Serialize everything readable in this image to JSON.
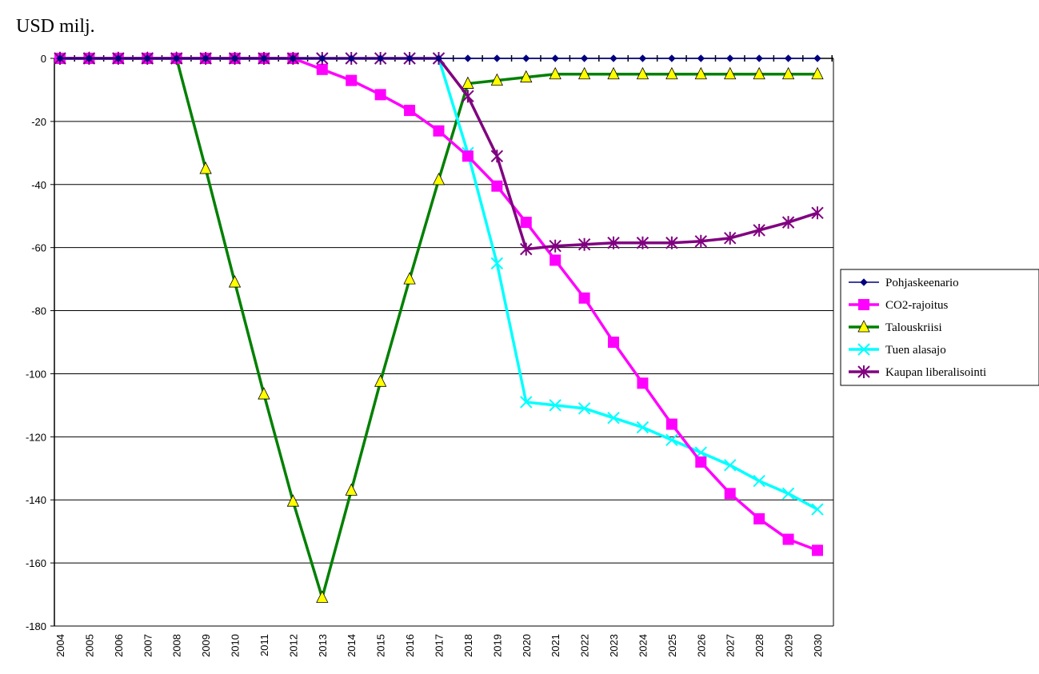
{
  "chart_data": {
    "type": "line",
    "title": "",
    "xlabel": "",
    "ylabel": "USD milj.",
    "ylim": [
      -180,
      0
    ],
    "ytick_step": 20,
    "grid": true,
    "legend_position": "right",
    "x": [
      "2004",
      "2005",
      "2006",
      "2007",
      "2008",
      "2009",
      "2010",
      "2011",
      "2012",
      "2013",
      "2014",
      "2015",
      "2016",
      "2017",
      "2018",
      "2019",
      "2020",
      "2021",
      "2022",
      "2023",
      "2024",
      "2025",
      "2026",
      "2027",
      "2028",
      "2029",
      "2030"
    ],
    "series": [
      {
        "name": "Pohjaskeenario",
        "color": "#000080",
        "marker": "diamond",
        "values": [
          0,
          0,
          0,
          0,
          0,
          0,
          0,
          0,
          0,
          0,
          0,
          0,
          0,
          0,
          0,
          0,
          0,
          0,
          0,
          0,
          0,
          0,
          0,
          0,
          0,
          0,
          0
        ]
      },
      {
        "name": "CO2-rajoitus",
        "color": "#ff00ff",
        "marker": "square",
        "values": [
          0,
          0,
          0,
          0,
          0,
          0,
          0,
          0,
          0,
          -3.5,
          -7,
          -11.5,
          -16.5,
          -23,
          -31,
          -40.5,
          -52,
          -64,
          -76,
          -90,
          -103,
          -116,
          -128,
          -138,
          -146,
          -152.5,
          -156
        ]
      },
      {
        "name": "Talouskriisi",
        "color": "#008000",
        "marker_fill": "#ffff00",
        "marker": "triangle",
        "values": [
          0,
          0,
          0,
          0,
          0,
          -35,
          -71,
          -106.5,
          -140.5,
          -171,
          -137,
          -102.5,
          -70,
          -38.5,
          -8,
          -7,
          -6,
          -5,
          -5,
          -5,
          -5,
          -5,
          -5,
          -5,
          -5,
          -5,
          -5
        ]
      },
      {
        "name": "Tuen alasajo",
        "color": "#00ffff",
        "marker": "x",
        "values": [
          0,
          0,
          0,
          0,
          0,
          0,
          0,
          0,
          0,
          0,
          0,
          0,
          0,
          0,
          -30,
          -65,
          -109,
          -110,
          -111,
          -114,
          -117,
          -121,
          -125,
          -129,
          -134,
          -138,
          -143
        ]
      },
      {
        "name": "Kaupan liberalisointi",
        "color": "#800080",
        "marker": "star",
        "values": [
          0,
          0,
          0,
          0,
          0,
          0,
          0,
          0,
          0,
          0,
          0,
          0,
          0,
          0,
          -12,
          -31,
          -60.5,
          -59.5,
          -59,
          -58.5,
          -58.5,
          -58.5,
          -58,
          -57,
          -54.5,
          -52,
          -49
        ]
      }
    ]
  }
}
